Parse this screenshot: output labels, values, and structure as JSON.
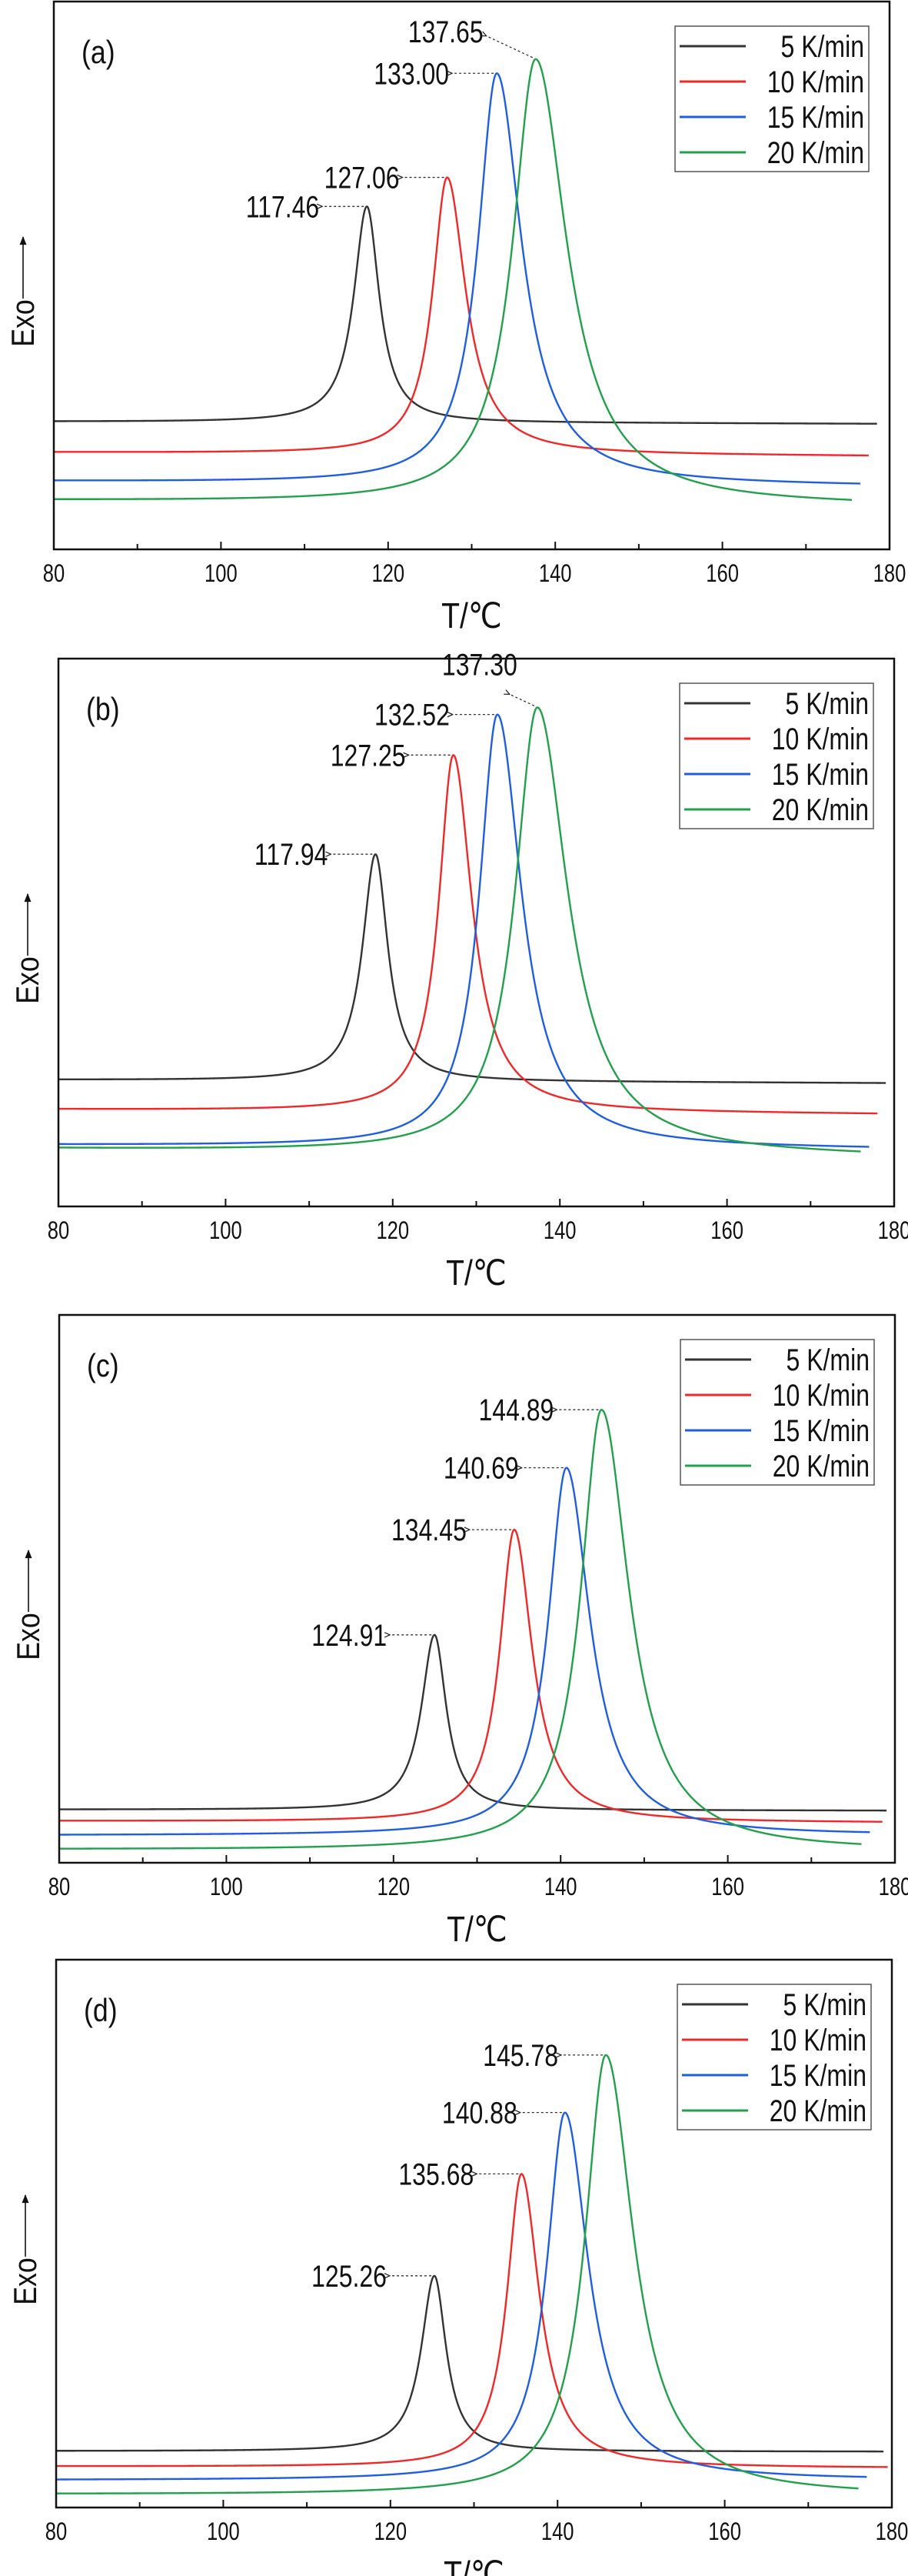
{
  "chart_data": [
    {
      "type": "line",
      "panel_label": "(a)",
      "xlabel": "T/℃",
      "ylabel": "Exo",
      "xlim": [
        80,
        180
      ],
      "ylim": [
        0,
        1
      ],
      "xticks": [
        80,
        100,
        120,
        140,
        160,
        180
      ],
      "y_ticks_shown": false,
      "grid": false,
      "legend": "top-right",
      "series": [
        {
          "name": "5 K/min",
          "color": "#333333",
          "peak_T": 117.46,
          "peak_label": "117.46",
          "x_range": [
            80,
            178.5
          ],
          "baseline": [
            0.233,
            0.229
          ],
          "peak_y": 0.626,
          "half_width": [
            1.9,
            1.8
          ]
        },
        {
          "name": "10 K/min",
          "color": "#f02828",
          "peak_T": 127.06,
          "peak_label": "127.06",
          "x_range": [
            80,
            177.5
          ],
          "baseline": [
            0.177,
            0.17
          ],
          "peak_y": 0.679,
          "half_width": [
            2.1,
            2.7
          ]
        },
        {
          "name": "15 K/min",
          "color": "#1f5ee0",
          "peak_T": 133.0,
          "peak_label": "133.00",
          "x_range": [
            80,
            176.5
          ],
          "baseline": [
            0.124,
            0.115
          ],
          "peak_y": 0.869,
          "half_width": [
            2.7,
            3.6
          ]
        },
        {
          "name": "20 K/min",
          "color": "#22a04c",
          "peak_T": 137.65,
          "peak_label": "137.65",
          "x_range": [
            80,
            175.5
          ],
          "baseline": [
            0.089,
            0.079
          ],
          "peak_y": 0.895,
          "half_width": [
            3.3,
            4.5
          ]
        }
      ]
    },
    {
      "type": "line",
      "panel_label": "(b)",
      "xlabel": "T/℃",
      "ylabel": "Exo",
      "xlim": [
        80,
        180
      ],
      "ylim": [
        0,
        1
      ],
      "xticks": [
        80,
        100,
        120,
        140,
        160,
        180
      ],
      "y_ticks_shown": false,
      "grid": false,
      "legend": "top-right",
      "series": [
        {
          "name": "5 K/min",
          "color": "#333333",
          "peak_T": 117.94,
          "peak_label": "117.94",
          "x_range": [
            80,
            179
          ],
          "baseline": [
            0.231,
            0.225
          ],
          "peak_y": 0.643,
          "half_width": [
            1.9,
            1.8
          ]
        },
        {
          "name": "10 K/min",
          "color": "#f02828",
          "peak_T": 127.25,
          "peak_label": "127.25",
          "x_range": [
            80,
            178
          ],
          "baseline": [
            0.177,
            0.168
          ],
          "peak_y": 0.824,
          "half_width": [
            2.1,
            2.7
          ]
        },
        {
          "name": "15 K/min",
          "color": "#1f5ee0",
          "peak_T": 132.52,
          "peak_label": "132.52",
          "x_range": [
            80,
            177
          ],
          "baseline": [
            0.112,
            0.104
          ],
          "peak_y": 0.898,
          "half_width": [
            2.6,
            3.5
          ]
        },
        {
          "name": "20 K/min",
          "color": "#22a04c",
          "peak_T": 137.3,
          "peak_label": "137.30",
          "x_range": [
            80,
            176
          ],
          "baseline": [
            0.105,
            0.09
          ],
          "peak_y": 0.911,
          "half_width": [
            3.2,
            4.4
          ]
        }
      ]
    },
    {
      "type": "line",
      "panel_label": "(c)",
      "xlabel": "T/℃",
      "ylabel": "Exo",
      "xlim": [
        80,
        180
      ],
      "ylim": [
        0,
        1
      ],
      "xticks": [
        80,
        100,
        120,
        140,
        160,
        180
      ],
      "y_ticks_shown": false,
      "grid": false,
      "legend": "top-right",
      "series": [
        {
          "name": "5 K/min",
          "color": "#333333",
          "peak_T": 124.91,
          "peak_label": "124.91",
          "x_range": [
            80,
            179
          ],
          "baseline": [
            0.097,
            0.095
          ],
          "peak_y": 0.416,
          "half_width": [
            1.9,
            1.7
          ]
        },
        {
          "name": "10 K/min",
          "color": "#f02828",
          "peak_T": 134.45,
          "peak_label": "134.45",
          "x_range": [
            80,
            178.5
          ],
          "baseline": [
            0.076,
            0.073
          ],
          "peak_y": 0.608,
          "half_width": [
            2.1,
            2.6
          ]
        },
        {
          "name": "15 K/min",
          "color": "#1f5ee0",
          "peak_T": 140.69,
          "peak_label": "140.69",
          "x_range": [
            80,
            177
          ],
          "baseline": [
            0.05,
            0.05
          ],
          "peak_y": 0.721,
          "half_width": [
            2.6,
            3.4
          ]
        },
        {
          "name": "20 K/min",
          "color": "#22a04c",
          "peak_T": 144.89,
          "peak_label": "144.89",
          "x_range": [
            80,
            176
          ],
          "baseline": [
            0.024,
            0.021
          ],
          "peak_y": 0.827,
          "half_width": [
            3.0,
            4.0
          ]
        }
      ]
    },
    {
      "type": "line",
      "panel_label": "(d)",
      "xlabel": "T/℃",
      "ylabel": "Exo",
      "xlim": [
        80,
        180
      ],
      "ylim": [
        0,
        1
      ],
      "xticks": [
        80,
        100,
        120,
        140,
        160,
        180
      ],
      "y_ticks_shown": false,
      "grid": false,
      "legend": "top-right",
      "series": [
        {
          "name": "5 K/min",
          "color": "#333333",
          "peak_T": 125.26,
          "peak_label": "125.26",
          "x_range": [
            80,
            179
          ],
          "baseline": [
            0.103,
            0.102
          ],
          "peak_y": 0.423,
          "half_width": [
            1.9,
            1.7
          ]
        },
        {
          "name": "10 K/min",
          "color": "#f02828",
          "peak_T": 135.68,
          "peak_label": "135.68",
          "x_range": [
            80,
            179.5
          ],
          "baseline": [
            0.075,
            0.072
          ],
          "peak_y": 0.609,
          "half_width": [
            2.1,
            2.6
          ]
        },
        {
          "name": "15 K/min",
          "color": "#1f5ee0",
          "peak_T": 140.88,
          "peak_label": "140.88",
          "x_range": [
            80,
            177
          ],
          "baseline": [
            0.05,
            0.05
          ],
          "peak_y": 0.721,
          "half_width": [
            2.6,
            3.4
          ]
        },
        {
          "name": "20 K/min",
          "color": "#22a04c",
          "peak_T": 145.78,
          "peak_label": "145.78",
          "x_range": [
            80,
            176
          ],
          "baseline": [
            0.024,
            0.021
          ],
          "peak_y": 0.826,
          "half_width": [
            3.0,
            4.0
          ]
        }
      ]
    }
  ]
}
